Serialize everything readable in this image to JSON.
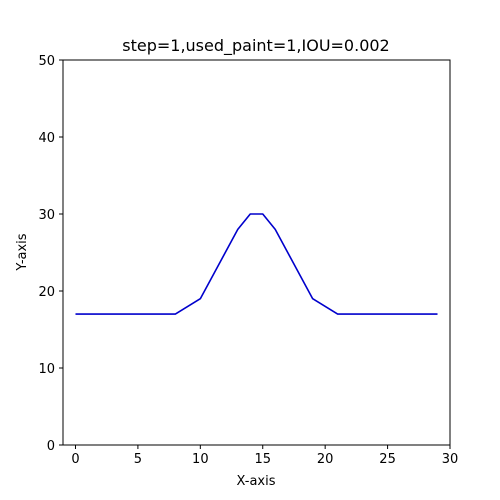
{
  "chart_data": {
    "type": "line",
    "title": "step=1,used_paint=1,IOU=0.002",
    "xlabel": "X-axis",
    "ylabel": "Y-axis",
    "xlim": [
      -1,
      30
    ],
    "ylim": [
      0,
      50
    ],
    "xticks": [
      0,
      5,
      10,
      15,
      20,
      25,
      30
    ],
    "yticks": [
      0,
      10,
      20,
      30,
      40,
      50
    ],
    "grid": false,
    "series": [
      {
        "color": "#0000cc",
        "x": [
          0,
          8,
          10,
          13,
          14,
          15,
          16,
          19,
          21,
          29
        ],
        "y": [
          17,
          17,
          19,
          28,
          30,
          30,
          28,
          19,
          17,
          17
        ]
      }
    ]
  }
}
